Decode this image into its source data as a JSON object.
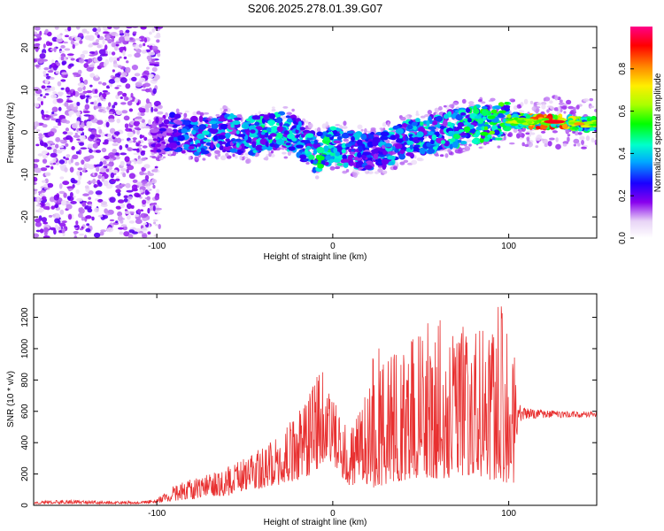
{
  "figure_title": "S206.2025.278.01.39.G07",
  "chart_data": [
    {
      "type": "heatmap",
      "title": "",
      "xlabel": "Height of straight line (km)",
      "ylabel": "Frequency (Hz)",
      "xlim": [
        -170,
        150
      ],
      "ylim": [
        -25,
        25
      ],
      "xticks": [
        -100,
        0,
        100
      ],
      "yticks": [
        -20,
        -10,
        0,
        10,
        20
      ],
      "colorbar": {
        "label": "Normalized spectral amplitude",
        "range": [
          0,
          1
        ],
        "ticks": [
          0.0,
          0.2,
          0.4,
          0.6,
          0.8
        ],
        "tick_labels": [
          "0.0",
          "0.2",
          "0.4",
          "0.6",
          "0.8"
        ]
      },
      "ridge": {
        "description": "dominant frequency vs height (approximate centerline)",
        "x": [
          -100,
          -90,
          -80,
          -70,
          -60,
          -50,
          -40,
          -30,
          -20,
          -10,
          0,
          10,
          20,
          30,
          40,
          50,
          60,
          70,
          80,
          90,
          100,
          110,
          120,
          130,
          140,
          150
        ],
        "frequency": [
          -0.5,
          0,
          -1,
          -1,
          0,
          -1,
          -0.5,
          0.5,
          -1,
          -5,
          -3,
          -4,
          -5,
          -4,
          -2,
          -1,
          0,
          1,
          2,
          2,
          3,
          2.5,
          2.5,
          2.5,
          2,
          2
        ],
        "amplitude": [
          0.2,
          0.3,
          0.35,
          0.4,
          0.4,
          0.4,
          0.45,
          0.45,
          0.4,
          0.5,
          0.45,
          0.4,
          0.35,
          0.4,
          0.4,
          0.45,
          0.4,
          0.45,
          0.5,
          0.55,
          0.6,
          0.7,
          0.95,
          0.85,
          0.6,
          0.5
        ]
      }
    },
    {
      "type": "line",
      "title": "",
      "xlabel": "Height of straight line (km)",
      "ylabel": "SNR (10 * v/v)",
      "xlim": [
        -170,
        150
      ],
      "ylim": [
        0,
        1350
      ],
      "xticks": [
        -100,
        0,
        100
      ],
      "yticks": [
        0,
        200,
        400,
        600,
        800,
        1000,
        1200
      ],
      "series": [
        {
          "name": "SNR",
          "color": "#e83030",
          "envelope": {
            "x": [
              -170,
              -150,
              -130,
              -110,
              -100,
              -90,
              -80,
              -70,
              -60,
              -50,
              -40,
              -30,
              -20,
              -10,
              -6,
              -5,
              -3,
              0,
              10,
              18,
              22,
              25,
              30,
              40,
              50,
              60,
              70,
              80,
              90,
              95,
              100,
              104,
              105,
              110,
              120,
              130,
              140,
              150
            ],
            "low": [
              10,
              10,
              10,
              10,
              15,
              30,
              40,
              60,
              60,
              90,
              110,
              130,
              160,
              200,
              250,
              300,
              280,
              250,
              120,
              120,
              100,
              120,
              130,
              160,
              180,
              170,
              180,
              200,
              160,
              150,
              140,
              130,
              530,
              550,
              555,
              560,
              560,
              565
            ],
            "high": [
              30,
              35,
              30,
              25,
              40,
              130,
              170,
              200,
              250,
              300,
              380,
              450,
              600,
              800,
              900,
              1100,
              800,
              680,
              500,
              700,
              1000,
              1100,
              950,
              1000,
              1150,
              1250,
              1100,
              1200,
              1050,
              1350,
              1050,
              1000,
              650,
              620,
              610,
              600,
              600,
              600
            ]
          }
        }
      ]
    }
  ]
}
